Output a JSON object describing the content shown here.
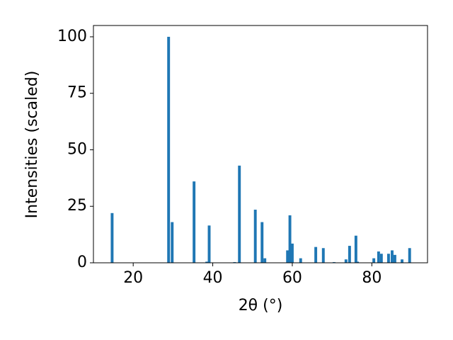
{
  "chart_data": {
    "type": "bar",
    "x_label": "2θ (°)",
    "y_label": "Intensities (scaled)",
    "x": [
      14.7,
      28.9,
      29.8,
      35.3,
      38.5,
      39.1,
      45.5,
      46.7,
      50.7,
      52.4,
      53.1,
      58.8,
      59.4,
      60.0,
      62.1,
      65.9,
      67.8,
      70.5,
      73.5,
      74.4,
      76.0,
      76.4,
      80.5,
      81.7,
      82.4,
      84.2,
      85.1,
      85.8,
      87.6,
      89.5
    ],
    "values": [
      22,
      100,
      18,
      36,
      0.5,
      16.5,
      0.3,
      43,
      23.5,
      18,
      2,
      5.5,
      21,
      8.5,
      2,
      7,
      6.5,
      0.3,
      1.5,
      7.5,
      12,
      0.5,
      2,
      5,
      4,
      4,
      5.5,
      3.5,
      1.5,
      6.5
    ],
    "color": "#1f77b4",
    "xlim": [
      10,
      94
    ],
    "ylim": [
      0,
      105
    ],
    "xticks": [
      20,
      40,
      60,
      80
    ],
    "yticks": [
      0,
      25,
      50,
      75,
      100
    ]
  }
}
